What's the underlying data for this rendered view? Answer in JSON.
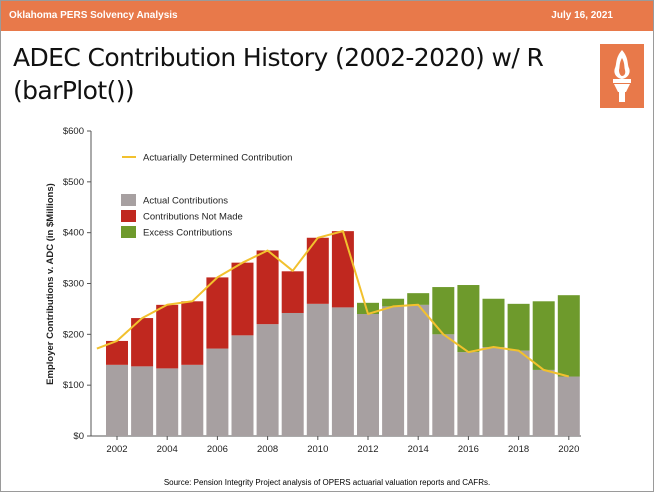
{
  "header": {
    "left_text": "Oklahoma PERS Solvency Analysis",
    "right_text": "July 16, 2021"
  },
  "slide": {
    "title": "ADEC Contribution History (2002-2020) w/ R (barPlot())",
    "logo_icon": "torch-icon",
    "source": "Source: Pension Integrity Project analysis of OPERS actuarial valuation reports and CAFRs."
  },
  "colors": {
    "header": "#e8794a",
    "actual": "#a7a0a1",
    "not_made": "#c0281f",
    "excess": "#6e9a2c",
    "adc_line": "#f2c12e"
  },
  "chart_data": {
    "type": "bar",
    "title": "",
    "xlabel": "",
    "ylabel": "Employer Contributions v. ADC (in $Millions)",
    "ylim": [
      0,
      600
    ],
    "yticks": [
      0,
      100,
      200,
      300,
      400,
      500,
      600
    ],
    "ytick_labels": [
      "$0",
      "$100",
      "$200",
      "$300",
      "$400",
      "$500",
      "$600"
    ],
    "xticks": [
      "2002",
      "2004",
      "2006",
      "2008",
      "2010",
      "2012",
      "2014",
      "2016",
      "2018",
      "2020"
    ],
    "categories": [
      "2002",
      "2003",
      "2004",
      "2005",
      "2006",
      "2007",
      "2008",
      "2009",
      "2010",
      "2011",
      "2012",
      "2013",
      "2014",
      "2015",
      "2016",
      "2017",
      "2018",
      "2019",
      "2020"
    ],
    "series": [
      {
        "name": "Actual Contributions",
        "values": [
          140,
          137,
          133,
          140,
          172,
          198,
          220,
          242,
          260,
          253,
          240,
          255,
          258,
          200,
          165,
          175,
          168,
          130,
          117
        ]
      },
      {
        "name": "Contributions Not Made",
        "values": [
          47,
          95,
          125,
          125,
          140,
          143,
          145,
          82,
          130,
          150,
          0,
          0,
          0,
          0,
          0,
          0,
          0,
          0,
          0
        ]
      },
      {
        "name": "Excess Contributions",
        "values": [
          0,
          0,
          0,
          0,
          0,
          0,
          0,
          0,
          0,
          0,
          22,
          15,
          23,
          93,
          132,
          95,
          92,
          135,
          160
        ]
      }
    ],
    "adc_line": {
      "name": "Actuarially Determined Contribution",
      "x_start": 2001.2,
      "x_end": 2020,
      "start_value": 172,
      "values": [
        187,
        232,
        258,
        265,
        312,
        341,
        365,
        325,
        390,
        403,
        240,
        255,
        258,
        200,
        165,
        175,
        168,
        130,
        117
      ]
    },
    "legend": {
      "position": "top-left"
    },
    "grid": false
  }
}
